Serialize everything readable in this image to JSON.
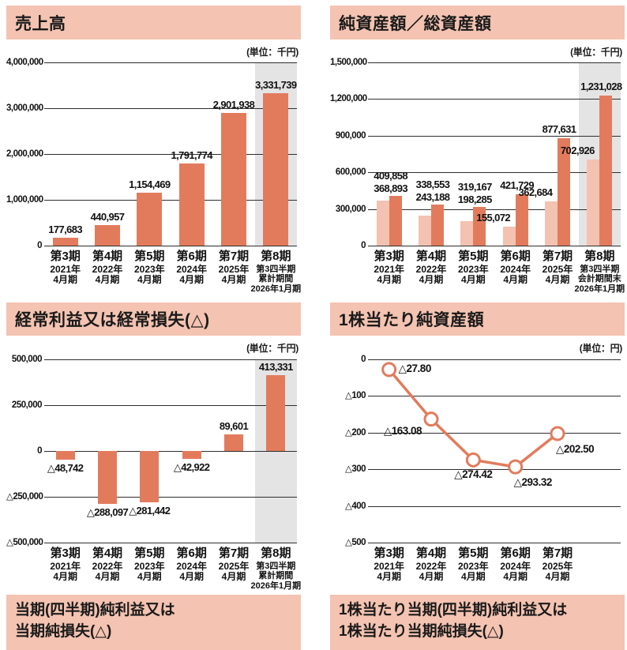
{
  "colors": {
    "panel_header_bg": "#f4c3b1",
    "bar": "#e27b5c",
    "bar_light": "#f3c2b1",
    "highlight_column": "#e5e4e5",
    "grid_line": "#2e2e2e",
    "text": "#111111"
  },
  "chart_data": [
    {
      "id": "net-sales",
      "title": "売上高",
      "unit": "(単位：千円)",
      "type": "bar",
      "ylim": [
        0,
        4000000
      ],
      "grid": true,
      "legend": "none",
      "y_ticks": [
        {
          "v": 4000000,
          "label": "4,000,000"
        },
        {
          "v": 3000000,
          "label": "3,000,000"
        },
        {
          "v": 2000000,
          "label": "2,000,000"
        },
        {
          "v": 1000000,
          "label": "1,000,000"
        },
        {
          "v": 0,
          "label": "0"
        }
      ],
      "categories": [
        [
          "第3期",
          "2021年",
          "4月期"
        ],
        [
          "第4期",
          "2022年",
          "4月期"
        ],
        [
          "第5期",
          "2023年",
          "4月期"
        ],
        [
          "第6期",
          "2024年",
          "4月期"
        ],
        [
          "第7期",
          "2025年",
          "4月期"
        ],
        [
          "第8期",
          "第3四半期",
          "累計期間",
          "2026年1月期"
        ]
      ],
      "values": [
        177683,
        440957,
        1154469,
        1791774,
        2901938,
        3331739
      ],
      "value_labels": [
        "177,683",
        "440,957",
        "1,154,469",
        "1,791,774",
        "2,901,938",
        "3,331,739"
      ],
      "highlight_last_column": true
    },
    {
      "id": "net-assets-total-assets",
      "title": "純資産額／総資産額",
      "unit": "(単位：千円)",
      "type": "grouped-bar",
      "ylim": [
        0,
        1500000
      ],
      "grid": true,
      "legend": "none",
      "y_ticks": [
        {
          "v": 1500000,
          "label": "1,500,000"
        },
        {
          "v": 1200000,
          "label": "1,200,000"
        },
        {
          "v": 900000,
          "label": "900,000"
        },
        {
          "v": 600000,
          "label": "600,000"
        },
        {
          "v": 300000,
          "label": "300,000"
        },
        {
          "v": 0,
          "label": "0"
        }
      ],
      "categories": [
        [
          "第3期",
          "2021年",
          "4月期"
        ],
        [
          "第4期",
          "2022年",
          "4月期"
        ],
        [
          "第5期",
          "2023年",
          "4月期"
        ],
        [
          "第6期",
          "2024年",
          "4月期"
        ],
        [
          "第7期",
          "2025年",
          "4月期"
        ],
        [
          "第8期",
          "第3四半期",
          "会計期間末",
          "2026年1月期"
        ]
      ],
      "series": [
        {
          "name": "純資産額",
          "role": "light",
          "values": [
            368893,
            243188,
            198285,
            155072,
            362684,
            702926
          ],
          "value_labels": [
            "368,893",
            "243,188",
            "198,285",
            "155,072",
            "362,684",
            "702,926"
          ]
        },
        {
          "name": "総資産額",
          "role": "dark",
          "values": [
            409858,
            338553,
            319167,
            421729,
            877631,
            1231028
          ],
          "value_labels": [
            "409,858",
            "338,553",
            "319,167",
            "421,729",
            "877,631",
            "1,231,028"
          ]
        }
      ],
      "highlight_last_column": true
    },
    {
      "id": "ordinary-income-or-loss",
      "title": "経常利益又は経常損失(△)",
      "unit": "(単位：千円)",
      "type": "bar",
      "ylim": [
        -500000,
        500000
      ],
      "grid": true,
      "legend": "none",
      "y_ticks": [
        {
          "v": 500000,
          "label": "500,000"
        },
        {
          "v": 250000,
          "label": "250,000"
        },
        {
          "v": 0,
          "label": "0"
        },
        {
          "v": -250000,
          "label": "△250,000"
        },
        {
          "v": -500000,
          "label": "△500,000"
        }
      ],
      "categories": [
        [
          "第3期",
          "2021年",
          "4月期"
        ],
        [
          "第4期",
          "2022年",
          "4月期"
        ],
        [
          "第5期",
          "2023年",
          "4月期"
        ],
        [
          "第6期",
          "2024年",
          "4月期"
        ],
        [
          "第7期",
          "2025年",
          "4月期"
        ],
        [
          "第8期",
          "第3四半期",
          "累計期間",
          "2026年1月期"
        ]
      ],
      "values": [
        -48742,
        -288097,
        -281442,
        -42922,
        89601,
        413331
      ],
      "value_labels": [
        "△48,742",
        "△288,097",
        "△281,442",
        "△42,922",
        "89,601",
        "413,331"
      ],
      "highlight_last_column": true
    },
    {
      "id": "net-assets-per-share",
      "title": "1株当たり純資産額",
      "unit": "(単位：円)",
      "type": "line",
      "ylim": [
        -500,
        0
      ],
      "grid": true,
      "legend": "none",
      "y_ticks": [
        {
          "v": 0,
          "label": "0"
        },
        {
          "v": -100,
          "label": "△100"
        },
        {
          "v": -200,
          "label": "△200"
        },
        {
          "v": -300,
          "label": "△300"
        },
        {
          "v": -400,
          "label": "△400"
        },
        {
          "v": -500,
          "label": "△500"
        }
      ],
      "categories": [
        [
          "第3期",
          "2021年",
          "4月期"
        ],
        [
          "第4期",
          "2022年",
          "4月期"
        ],
        [
          "第5期",
          "2023年",
          "4月期"
        ],
        [
          "第6期",
          "2024年",
          "4月期"
        ],
        [
          "第7期",
          "2025年",
          "4月期"
        ]
      ],
      "values": [
        -27.8,
        -163.08,
        -274.42,
        -293.32,
        -202.5
      ],
      "value_labels": [
        "△27.80",
        "△163.08",
        "△274.42",
        "△293.32",
        "△202.50"
      ],
      "label_positions": [
        "right",
        "left-below",
        "below",
        "below-right",
        "below-right"
      ],
      "highlight_last_column": false
    }
  ],
  "footer_titles": [
    {
      "lines": [
        "当期(四半期)純利益又は",
        "当期純損失(△)"
      ]
    },
    {
      "lines": [
        "1株当たり当期(四半期)純利益又は",
        "1株当たり当期純損失(△)"
      ]
    }
  ]
}
